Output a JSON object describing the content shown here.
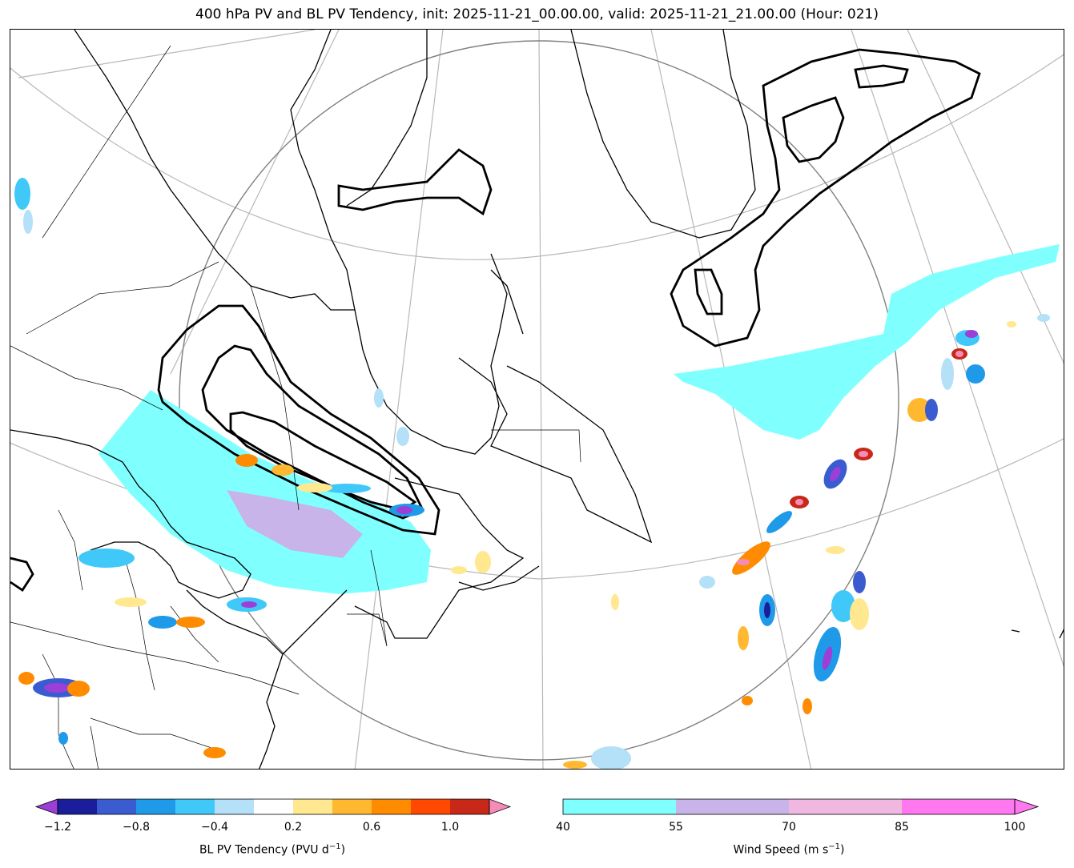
{
  "title": "400 hPa PV and BL PV Tendency, init: 2025-11-21_00.00.00, valid: 2025-11-21_21.00.00 (Hour: 021)",
  "colors": {
    "cyan40": "#80ffff",
    "lav55": "#c8b4e8",
    "pink70": "#f0b8e0",
    "mag85": "#ff78f0",
    "neg12": "#9b3fd6",
    "neg10": "#1a1e9a",
    "neg08": "#3a5cd0",
    "neg06": "#1f9ae8",
    "neg04": "#40c8f8",
    "neg02": "#b4e0f8",
    "pos02": "#ffe890",
    "pos04": "#ffb830",
    "pos06": "#ff8c00",
    "pos08": "#ff4800",
    "pos10": "#c82818",
    "pos12": "#f48cb8"
  },
  "colorbar_pv": {
    "label_main": "BL PV Tendency (PVU d",
    "label_exp": "−1",
    "label_end": ")",
    "ticks": [
      "−1.2",
      "−0.8",
      "−0.4",
      "0.2",
      "0.6",
      "1.0"
    ]
  },
  "colorbar_wind": {
    "label_main": "Wind Speed (m s",
    "label_exp": "−1",
    "label_end": ")",
    "ticks": [
      "40",
      "55",
      "70",
      "85",
      "100"
    ]
  }
}
